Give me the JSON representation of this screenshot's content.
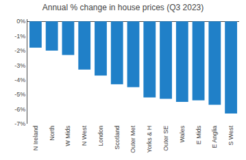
{
  "chart_data": {
    "type": "bar",
    "title": "Annual % change in house prices (Q3 2023)",
    "categories": [
      "N Ireland",
      "North",
      "W Mids",
      "N West",
      "London",
      "Scotland",
      "Outer Met",
      "Yorks & H",
      "Outer SE",
      "Wales",
      "E Mids",
      "E Anglia",
      "S West"
    ],
    "values": [
      -1.8,
      -2.0,
      -2.3,
      -3.3,
      -3.7,
      -4.3,
      -4.5,
      -5.2,
      -5.3,
      -5.5,
      -5.4,
      -5.7,
      -6.3
    ],
    "color": "#2080c8",
    "ylim": [
      -7,
      0.15
    ],
    "yticks": [
      {
        "value": 0,
        "label": "0%"
      },
      {
        "value": -1,
        "label": "-1%"
      },
      {
        "value": -2,
        "label": "-2%"
      },
      {
        "value": -3,
        "label": "-3%"
      },
      {
        "value": -4,
        "label": "-4%"
      },
      {
        "value": -5,
        "label": "-5%"
      },
      {
        "value": -6,
        "label": "-6%"
      },
      {
        "value": -7,
        "label": "-7%"
      }
    ],
    "grid": false
  }
}
